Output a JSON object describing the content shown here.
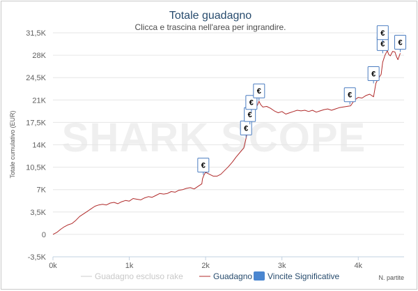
{
  "chart_data": {
    "type": "line",
    "title": "Totale guadagno",
    "subtitle": "Clicca e trascina nell'area per ingrandire.",
    "ylabel": "Totale cumulativo (EUR)",
    "xlabel": "N. partite",
    "watermark": "SHARK SCOPE",
    "ylim": [
      -3500,
      31500
    ],
    "xlim": [
      0,
      4600
    ],
    "y_ticks": [
      "31,5K",
      "28K",
      "24,5K",
      "21K",
      "17,5K",
      "14K",
      "10,5K",
      "7K",
      "3,5K",
      "0",
      "-3,5K"
    ],
    "y_tick_values": [
      31500,
      28000,
      24500,
      21000,
      17500,
      14000,
      10500,
      7000,
      3500,
      0,
      -3500
    ],
    "x_ticks": [
      "0k",
      "1k",
      "2k",
      "3k",
      "4k"
    ],
    "x_tick_values": [
      0,
      1000,
      2000,
      3000,
      4000
    ],
    "grid": true,
    "legend_position": "bottom",
    "colors": {
      "series_line": "#b02a2a",
      "legend_rake_line": "#cccccc",
      "marker_border": "#4a7cc0",
      "legend_marker_fill": "#4a86d0",
      "grid": "#e6e6e6",
      "title": "#274b6d"
    },
    "legend": [
      {
        "label": "Guadagno escluso rake",
        "style": "line",
        "color": "#cccccc",
        "muted": true
      },
      {
        "label": "Guadagno",
        "style": "line",
        "color": "#b02a2a",
        "muted": false
      },
      {
        "label": "Vincite Significative",
        "style": "box",
        "color": "#4a86d0",
        "muted": false
      }
    ],
    "series": [
      {
        "name": "Guadagno",
        "x": [
          0,
          50,
          100,
          150,
          200,
          250,
          300,
          350,
          400,
          450,
          500,
          550,
          600,
          650,
          700,
          750,
          800,
          850,
          900,
          950,
          1000,
          1050,
          1100,
          1150,
          1200,
          1250,
          1300,
          1350,
          1400,
          1450,
          1500,
          1550,
          1600,
          1650,
          1700,
          1750,
          1800,
          1850,
          1900,
          1950,
          1960,
          1980,
          2000,
          2050,
          2100,
          2150,
          2200,
          2250,
          2300,
          2350,
          2400,
          2450,
          2500,
          2530,
          2550,
          2580,
          2600,
          2620,
          2650,
          2680,
          2700,
          2720,
          2750,
          2800,
          2850,
          2900,
          2950,
          3000,
          3050,
          3100,
          3150,
          3200,
          3250,
          3300,
          3350,
          3400,
          3450,
          3500,
          3550,
          3600,
          3650,
          3700,
          3750,
          3800,
          3850,
          3900,
          3950,
          4000,
          4050,
          4100,
          4150,
          4200,
          4230,
          4260,
          4300,
          4320,
          4350,
          4380,
          4400,
          4420,
          4450,
          4480,
          4500,
          4520,
          4550
        ],
        "y": [
          0,
          300,
          800,
          1200,
          1500,
          1700,
          2200,
          2800,
          3200,
          3600,
          4000,
          4400,
          4600,
          4700,
          4600,
          4900,
          5000,
          4800,
          5100,
          5300,
          5200,
          5600,
          5500,
          5400,
          5700,
          5900,
          5800,
          6100,
          6400,
          6300,
          6400,
          6700,
          6600,
          6900,
          7000,
          7200,
          7300,
          7100,
          7500,
          7900,
          8700,
          9300,
          9700,
          9400,
          9100,
          9100,
          9400,
          10000,
          10600,
          11300,
          12100,
          12800,
          13500,
          15000,
          16200,
          17000,
          17500,
          18600,
          19600,
          20200,
          20800,
          20300,
          19900,
          20000,
          19700,
          19300,
          19000,
          19200,
          18800,
          19000,
          19200,
          19400,
          19300,
          19400,
          19200,
          19400,
          19100,
          19300,
          19500,
          19600,
          19400,
          19600,
          19800,
          19900,
          20000,
          20100,
          21000,
          21400,
          21300,
          21700,
          21900,
          21500,
          23600,
          24300,
          25000,
          26900,
          28000,
          28700,
          28100,
          27900,
          28600,
          28500,
          27800,
          27300,
          28300
        ]
      }
    ],
    "significant_wins": [
      {
        "label": "€",
        "x": 1970,
        "y": 9300
      },
      {
        "label": "€",
        "x": 2530,
        "y": 15100
      },
      {
        "label": "€",
        "x": 2580,
        "y": 17200
      },
      {
        "label": "€",
        "x": 2600,
        "y": 19100
      },
      {
        "label": "€",
        "x": 2700,
        "y": 20900
      },
      {
        "label": "€",
        "x": 3890,
        "y": 20300
      },
      {
        "label": "€",
        "x": 4200,
        "y": 23600
      },
      {
        "label": "€",
        "x": 4320,
        "y": 28300
      },
      {
        "label": "€",
        "x": 4320,
        "y": 30000
      },
      {
        "label": "€",
        "x": 4550,
        "y": 28500
      }
    ]
  }
}
